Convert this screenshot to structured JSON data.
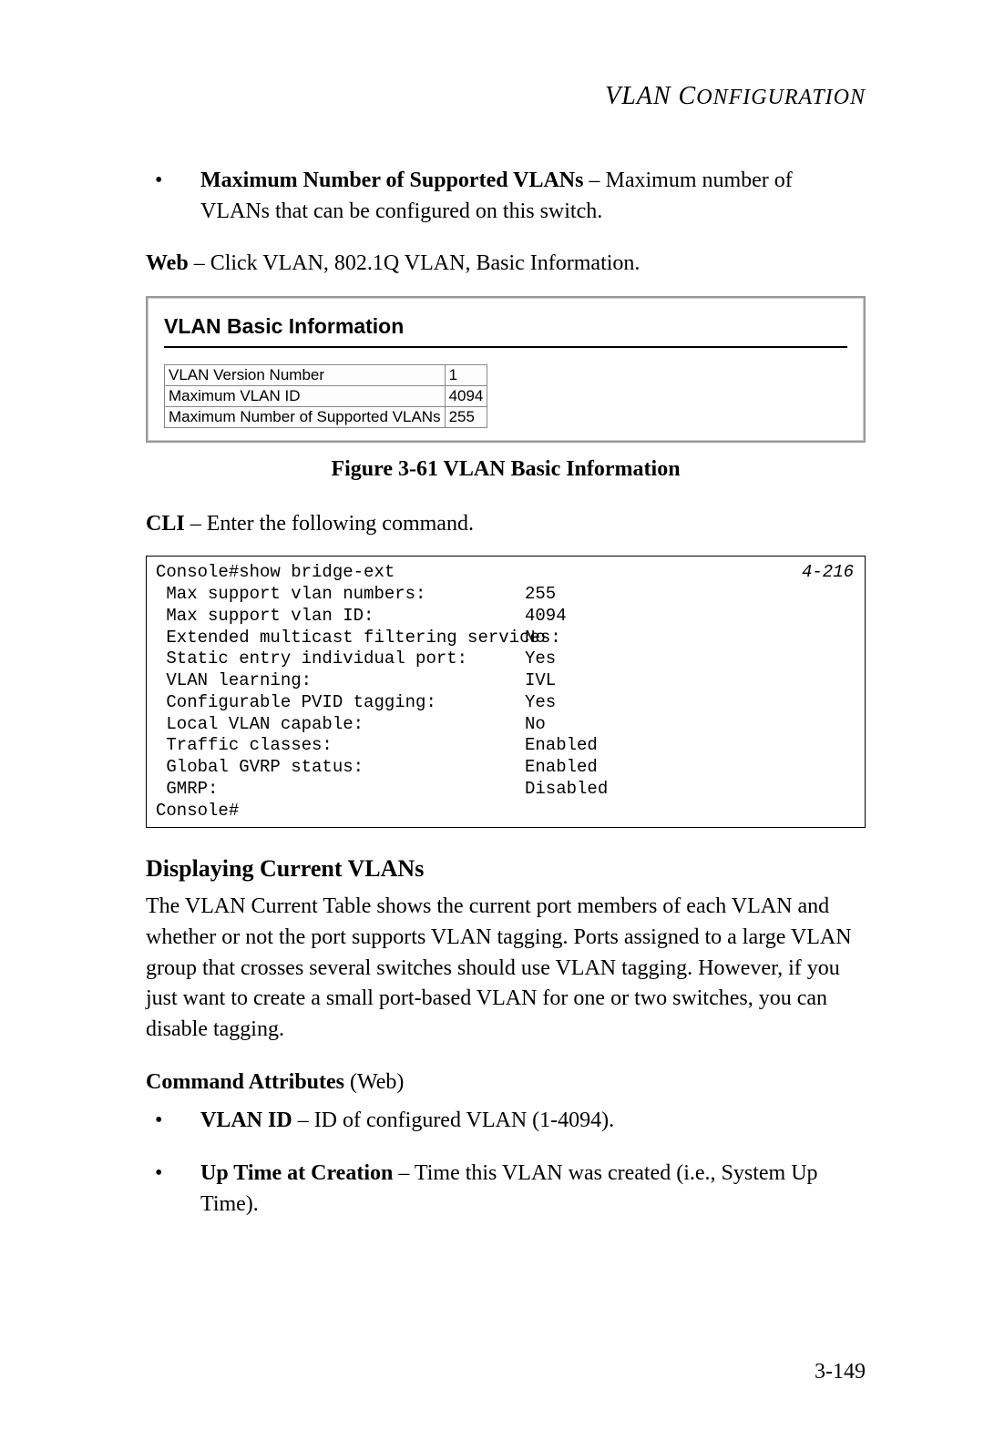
{
  "header": {
    "title_left": "VLAN C",
    "title_right": "ONFIGURATION"
  },
  "bullets_top": [
    {
      "bold": "Maximum Number of Supported VLANs",
      "rest": " – Maximum number of VLANs that can be configured on this switch."
    }
  ],
  "web_line": {
    "bold": "Web",
    "rest": " – Click VLAN, 802.1Q VLAN, Basic Information."
  },
  "figure": {
    "panel_title": "VLAN Basic Information",
    "rows": [
      {
        "label": "VLAN Version Number",
        "value": "1"
      },
      {
        "label": "Maximum VLAN ID",
        "value": "4094"
      },
      {
        "label": "Maximum Number of Supported VLANs",
        "value": "255"
      }
    ],
    "caption": "Figure 3-61  VLAN Basic Information"
  },
  "cli_intro": {
    "bold": "CLI",
    "rest": " – Enter the following command."
  },
  "cli": {
    "ref": "4-216",
    "first_line": "Console#show bridge-ext",
    "lines": [
      {
        "label": " Max support vlan numbers:",
        "value": "255"
      },
      {
        "label": " Max support vlan ID:",
        "value": "4094"
      },
      {
        "label": " Extended multicast filtering services:",
        "value": "No"
      },
      {
        "label": " Static entry individual port:",
        "value": "Yes"
      },
      {
        "label": " VLAN learning:",
        "value": "IVL"
      },
      {
        "label": " Configurable PVID tagging:",
        "value": "Yes"
      },
      {
        "label": " Local VLAN capable:",
        "value": "No"
      },
      {
        "label": " Traffic classes:",
        "value": "Enabled"
      },
      {
        "label": " Global GVRP status:",
        "value": "Enabled"
      },
      {
        "label": " GMRP:",
        "value": "Disabled"
      }
    ],
    "last_line": "Console#"
  },
  "section": {
    "heading": "Displaying Current VLANs",
    "body": "The VLAN Current Table shows the current port members of each VLAN and whether or not the port supports VLAN tagging. Ports assigned to a large VLAN group that crosses several switches should use VLAN tagging. However, if you just want to create a small port-based VLAN for one or two switches, you can disable tagging."
  },
  "command_attrs": {
    "heading_bold": "Command Attributes",
    "heading_rest": " (Web)",
    "items": [
      {
        "bold": "VLAN ID",
        "rest": " – ID of configured VLAN (1-4094)."
      },
      {
        "bold": "Up Time at Creation",
        "rest": " – Time this VLAN was created (i.e., System Up Time)."
      }
    ]
  },
  "page_number": "3-149"
}
